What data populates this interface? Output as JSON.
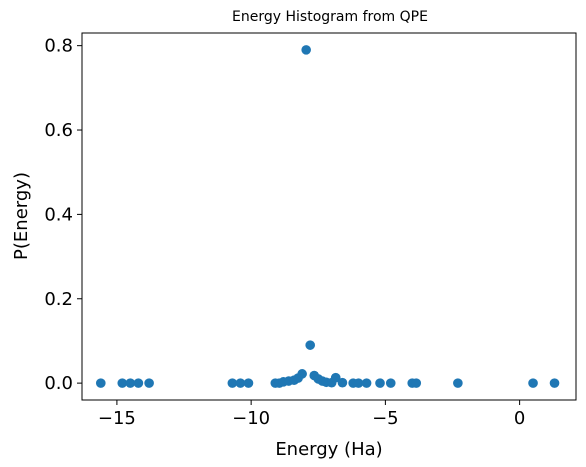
{
  "chart_data": {
    "type": "scatter",
    "title": "Energy Histogram from QPE",
    "xlabel": "Energy (Ha)",
    "ylabel": "P(Energy)",
    "xlim": [
      -16.3,
      2.1
    ],
    "ylim": [
      -0.04,
      0.83
    ],
    "xticks": [
      -15,
      -10,
      -5,
      0
    ],
    "xtick_labels": [
      "−15",
      "−10",
      "−5",
      "0"
    ],
    "yticks": [
      0.0,
      0.2,
      0.4,
      0.6,
      0.8
    ],
    "ytick_labels": [
      "0.0",
      "0.2",
      "0.4",
      "0.6",
      "0.8"
    ],
    "grid": false,
    "marker_color": "#1f77b4",
    "series": [
      {
        "x": [
          -15.6,
          -14.8,
          -14.5,
          -14.2,
          -13.8,
          -10.7,
          -10.4,
          -10.1,
          -9.1,
          -8.95,
          -8.8,
          -8.6,
          -8.4,
          -8.25,
          -8.1,
          -7.95,
          -7.8,
          -7.65,
          -7.5,
          -7.35,
          -7.2,
          -7.0,
          -6.85,
          -6.6,
          -6.2,
          -6.0,
          -5.7,
          -5.2,
          -4.8,
          -4.0,
          -3.85,
          -2.3,
          0.5,
          1.3
        ],
        "y": [
          0.0,
          0.0,
          0.0,
          0.0,
          0.0,
          0.0,
          0.0,
          0.0,
          0.0,
          0.0,
          0.003,
          0.005,
          0.007,
          0.012,
          0.022,
          0.79,
          0.09,
          0.018,
          0.01,
          0.005,
          0.002,
          0.001,
          0.013,
          0.001,
          0.0,
          0.0,
          0.0,
          0.0,
          0.0,
          0.0,
          0.0,
          0.0,
          0.0,
          0.0
        ]
      }
    ]
  }
}
